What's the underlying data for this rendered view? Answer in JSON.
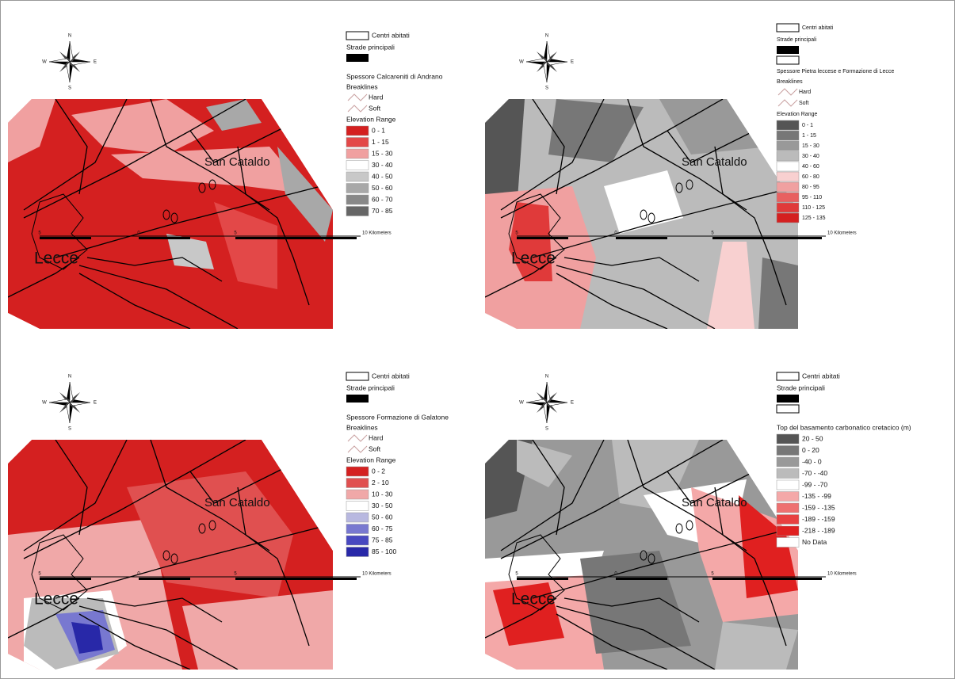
{
  "panels": [
    {
      "compass": {
        "n": "N",
        "e": "E",
        "s": "S",
        "w": "W"
      },
      "legend": {
        "centri": "Centri abitati",
        "strade": "Strade principali",
        "layer": "Spessore Calcareniti di Andrano",
        "breaklines": "Breaklines",
        "hard": "Hard",
        "soft": "Soft",
        "range_title": "Elevation Range",
        "classes": [
          {
            "label": "0 - 1",
            "color": "#d42020"
          },
          {
            "label": "1 - 15",
            "color": "#e34848"
          },
          {
            "label": "15 - 30",
            "color": "#f0a0a0"
          },
          {
            "label": "30 - 40",
            "color": "#ffffff"
          },
          {
            "label": "40 - 50",
            "color": "#c8c8c8"
          },
          {
            "label": "50 - 60",
            "color": "#a8a8a8"
          },
          {
            "label": "60 - 70",
            "color": "#888888"
          },
          {
            "label": "70 - 85",
            "color": "#666666"
          }
        ]
      },
      "places": {
        "san_cataldo": "San Cataldo",
        "lecce": "Lecce"
      },
      "scale": [
        "5",
        "0",
        "5",
        "10 Kilometers"
      ]
    },
    {
      "compass": {
        "n": "N",
        "e": "E",
        "s": "S",
        "w": "W"
      },
      "legend": {
        "centri": "Centri abitati",
        "strade": "Strade principali",
        "layer": "Spessore Pietra leccese e Formazione di Lecce",
        "breaklines": "Breaklines",
        "hard": "Hard",
        "soft": "Soft",
        "range_title": "Elevation Range",
        "classes": [
          {
            "label": "0 - 1",
            "color": "#555555"
          },
          {
            "label": "1 - 15",
            "color": "#777777"
          },
          {
            "label": "15 - 30",
            "color": "#999999"
          },
          {
            "label": "30 - 40",
            "color": "#bbbbbb"
          },
          {
            "label": "40 - 60",
            "color": "#ffffff"
          },
          {
            "label": "60 - 80",
            "color": "#f8d0d0"
          },
          {
            "label": "80 - 95",
            "color": "#f0a0a0"
          },
          {
            "label": "95 - 110",
            "color": "#e86060"
          },
          {
            "label": "110 - 125",
            "color": "#e03a3a"
          },
          {
            "label": "125 - 135",
            "color": "#d42020"
          }
        ]
      },
      "places": {
        "san_cataldo": "San Cataldo",
        "lecce": "Lecce"
      },
      "scale": [
        "5",
        "0",
        "5",
        "10 Kilometers"
      ]
    },
    {
      "compass": {
        "n": "N",
        "e": "E",
        "s": "S",
        "w": "W"
      },
      "legend": {
        "centri": "Centri abitati",
        "strade": "Strade principali",
        "layer": "Spessore Formazione di Galatone",
        "breaklines": "Breaklines",
        "hard": "Hard",
        "soft": "Soft",
        "range_title": "Elevation Range",
        "classes": [
          {
            "label": "0 - 2",
            "color": "#d42020"
          },
          {
            "label": "2 - 10",
            "color": "#e05050"
          },
          {
            "label": "10 - 30",
            "color": "#f0a8a8"
          },
          {
            "label": "30 - 50",
            "color": "#ffffff"
          },
          {
            "label": "50 - 60",
            "color": "#b8b8e0"
          },
          {
            "label": "60 - 75",
            "color": "#7878d0"
          },
          {
            "label": "75 - 85",
            "color": "#4848c0"
          },
          {
            "label": "85 - 100",
            "color": "#2828a8"
          }
        ]
      },
      "places": {
        "san_cataldo": "San Cataldo",
        "lecce": "Lecce"
      },
      "scale": [
        "5",
        "0",
        "5",
        "10 Kilometers"
      ]
    },
    {
      "compass": {
        "n": "N",
        "e": "E",
        "s": "S",
        "w": "W"
      },
      "legend": {
        "centri": "Centri abitati",
        "strade": "Strade principali",
        "layer": "Top del basamento carbonatico cretacico  (m)",
        "classes": [
          {
            "label": "20 - 50",
            "color": "#555555"
          },
          {
            "label": "0 - 20",
            "color": "#777777"
          },
          {
            "label": "-40 - 0",
            "color": "#999999"
          },
          {
            "label": "-70 - -40",
            "color": "#bbbbbb"
          },
          {
            "label": "-99 - -70",
            "color": "#ffffff"
          },
          {
            "label": "-135 - -99",
            "color": "#f4a8a8"
          },
          {
            "label": "-159 - -135",
            "color": "#ee7070"
          },
          {
            "label": "-189 - -159",
            "color": "#e84040"
          },
          {
            "label": "-218 - -189",
            "color": "#e02020"
          },
          {
            "label": "No Data",
            "color": "#ffffff"
          }
        ]
      },
      "places": {
        "san_cataldo": "San Cataldo",
        "lecce": "Lecce"
      },
      "scale": [
        "5",
        "0",
        "5",
        "10 Kilometers"
      ]
    }
  ]
}
